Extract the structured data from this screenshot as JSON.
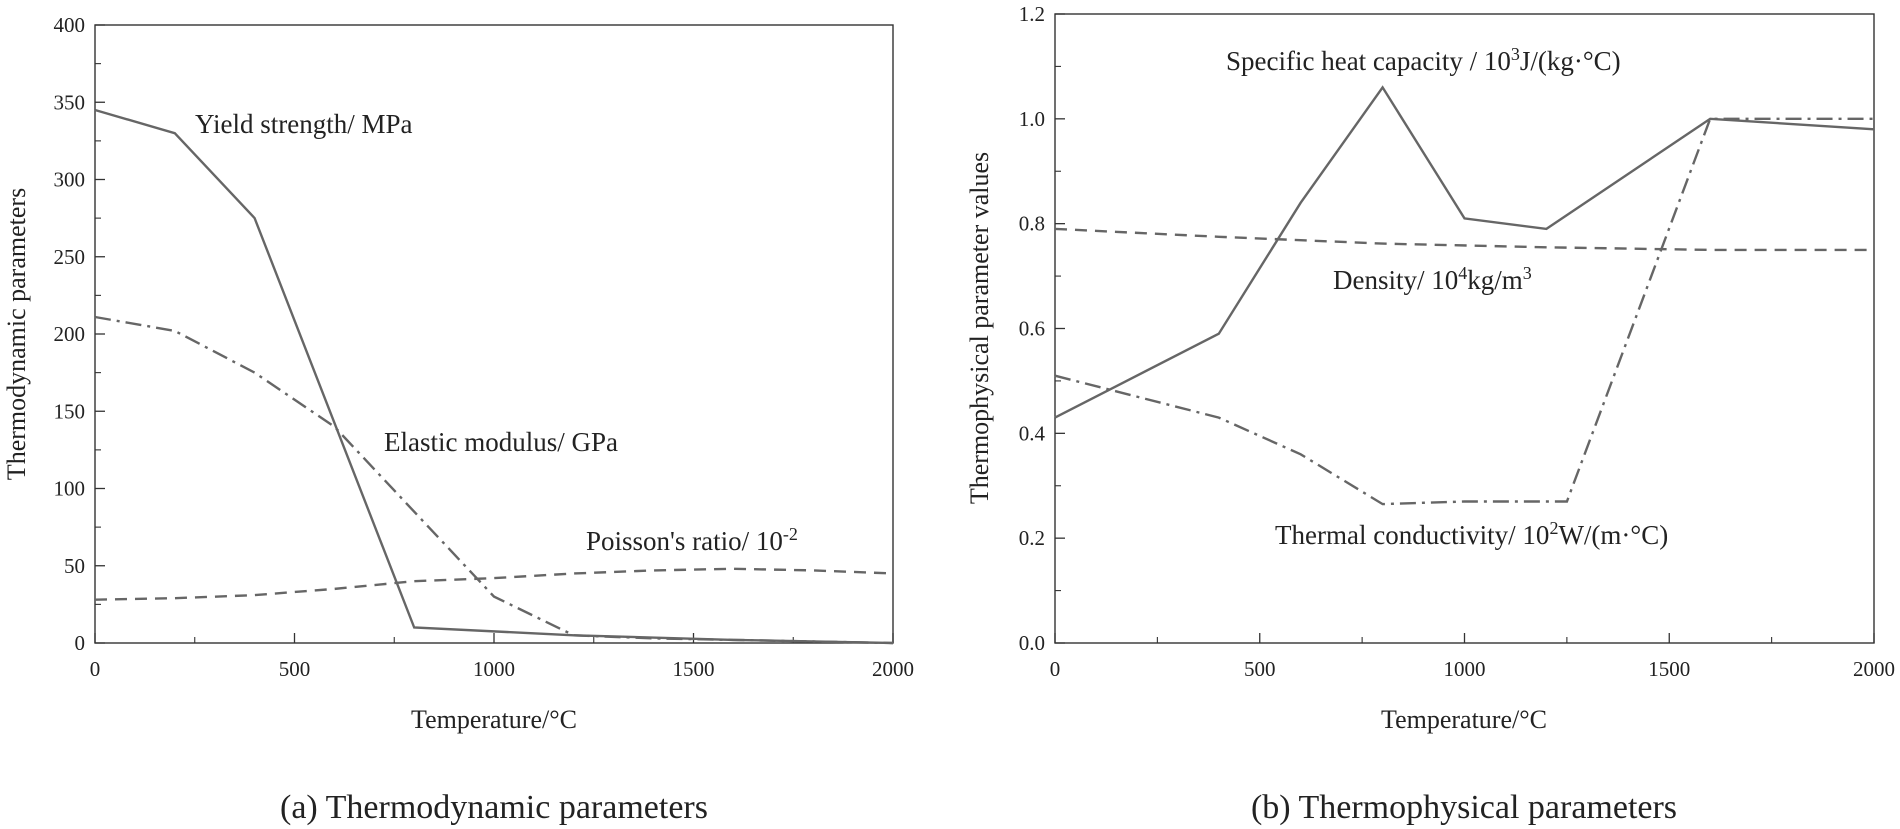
{
  "chart_data": [
    {
      "type": "line",
      "caption": "(a) Thermodynamic parameters",
      "xlabel": "Temperature/°C",
      "ylabel": "Thermodynamic parameters",
      "xlim": [
        0,
        2000
      ],
      "ylim": [
        0,
        400
      ],
      "xticks": [
        0,
        500,
        1000,
        1500,
        2000
      ],
      "yticks": [
        0,
        50,
        100,
        150,
        200,
        250,
        300,
        350,
        400
      ],
      "series": [
        {
          "name": "Yield strength/ MPa",
          "label_parts": [
            "Yield strength/ MPa"
          ],
          "style": "solid",
          "x": [
            0,
            200,
            400,
            800,
            1200,
            1600,
            2000
          ],
          "y": [
            345,
            330,
            275,
            10,
            5,
            2,
            0
          ]
        },
        {
          "name": "Elastic modulus/ GPa",
          "label_parts": [
            "Elastic modulus/ GPa"
          ],
          "style": "dashdot",
          "x": [
            0,
            200,
            400,
            600,
            800,
            1000,
            1200,
            1400,
            1600,
            1800,
            2000
          ],
          "y": [
            211,
            202,
            175,
            140,
            85,
            30,
            5,
            3,
            2,
            1,
            0
          ]
        },
        {
          "name": "Poisson's ratio/ 10-2",
          "label_parts": [
            "Poisson's ratio/ 10",
            "-2"
          ],
          "style": "dashed",
          "x": [
            0,
            200,
            400,
            600,
            800,
            1000,
            1200,
            1400,
            1600,
            1800,
            2000
          ],
          "y": [
            28,
            29,
            31,
            35,
            40,
            42,
            45,
            47,
            48,
            47,
            45
          ]
        }
      ]
    },
    {
      "type": "line",
      "caption": "(b) Thermophysical parameters",
      "xlabel": "Temperature/°C",
      "ylabel": "Thermophysical parameter values",
      "xlim": [
        0,
        2000
      ],
      "ylim": [
        0,
        1.2
      ],
      "xticks": [
        0,
        500,
        1000,
        1500,
        2000
      ],
      "yticks": [
        "0.0",
        "0.2",
        "0.4",
        "0.6",
        "0.8",
        "1.0",
        "1.2"
      ],
      "series": [
        {
          "name": "Specific heat capacity / 103J/(kg·°C)",
          "label_parts": [
            "Specific heat capacity  / 10",
            "3",
            "J/(kg·°C)"
          ],
          "style": "solid",
          "x": [
            0,
            400,
            600,
            800,
            1000,
            1200,
            1600,
            2000
          ],
          "y": [
            0.43,
            0.59,
            0.84,
            1.06,
            0.81,
            0.79,
            1.0,
            0.98
          ]
        },
        {
          "name": "Density/ 104kg/m3",
          "label_parts": [
            "Density/ 10",
            "4",
            "kg/m",
            "3"
          ],
          "style": "dashed",
          "x": [
            0,
            400,
            800,
            1200,
            1600,
            2000
          ],
          "y": [
            0.79,
            0.775,
            0.762,
            0.755,
            0.75,
            0.75
          ],
          "note": "label shown below curve"
        },
        {
          "name": "Thermal conductivity/ 102W/(m·°C)",
          "label_parts": [
            "Thermal conductivity/  10",
            "2",
            "W/(m·°C)"
          ],
          "style": "dashdot",
          "x": [
            0,
            400,
            600,
            800,
            1000,
            1200,
            1250,
            1600,
            2000
          ],
          "y": [
            0.51,
            0.43,
            0.36,
            0.265,
            0.27,
            0.27,
            0.27,
            1.0,
            1.0
          ]
        }
      ]
    }
  ]
}
